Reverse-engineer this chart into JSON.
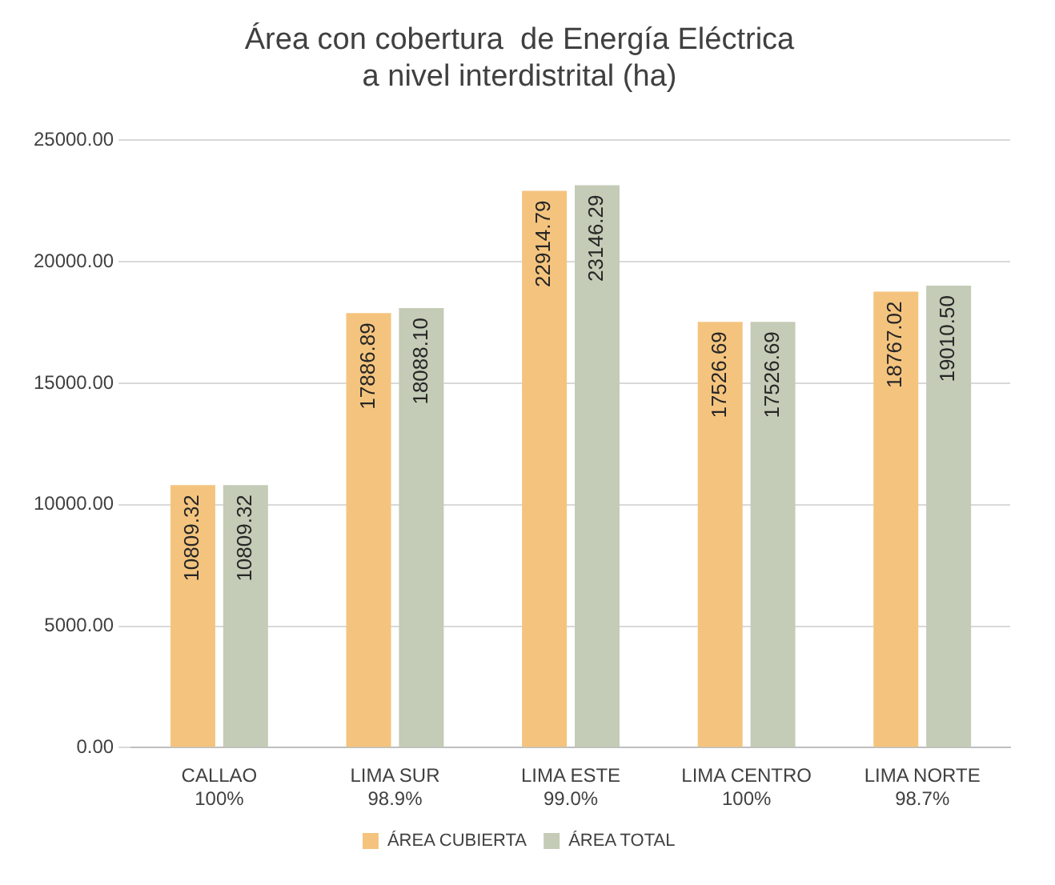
{
  "chart_data": {
    "type": "bar",
    "title": "Área con cobertura  de Energía Eléctrica\na nivel interdistrital (ha)",
    "categories": [
      "CALLAO\n100%",
      "LIMA SUR\n98.9%",
      "LIMA ESTE\n99.0%",
      "LIMA CENTRO\n100%",
      "LIMA NORTE\n98.7%"
    ],
    "series": [
      {
        "name": "ÁREA CUBIERTA",
        "color": "#f4c47e",
        "values": [
          10809.32,
          17886.89,
          22914.79,
          17526.69,
          18767.02
        ],
        "value_labels": [
          "10809.32",
          "17886.89",
          "22914.79",
          "17526.69",
          "18767.02"
        ]
      },
      {
        "name": "ÁREA TOTAL",
        "color": "#c4cbb6",
        "values": [
          10809.32,
          18088.1,
          23146.29,
          17526.69,
          19010.5
        ],
        "value_labels": [
          "10809.32",
          "18088.10",
          "23146.29",
          "17526.69",
          "19010.50"
        ]
      }
    ],
    "ylim": [
      0,
      25000
    ],
    "yticks": [
      {
        "value": 0,
        "label": "0.00"
      },
      {
        "value": 5000,
        "label": "5000.00"
      },
      {
        "value": 10000,
        "label": "10000.00"
      },
      {
        "value": 15000,
        "label": "15000.00"
      },
      {
        "value": 20000,
        "label": "20000.00"
      },
      {
        "value": 25000,
        "label": "25000.00"
      }
    ],
    "grid": "y",
    "legend": "bottom"
  }
}
